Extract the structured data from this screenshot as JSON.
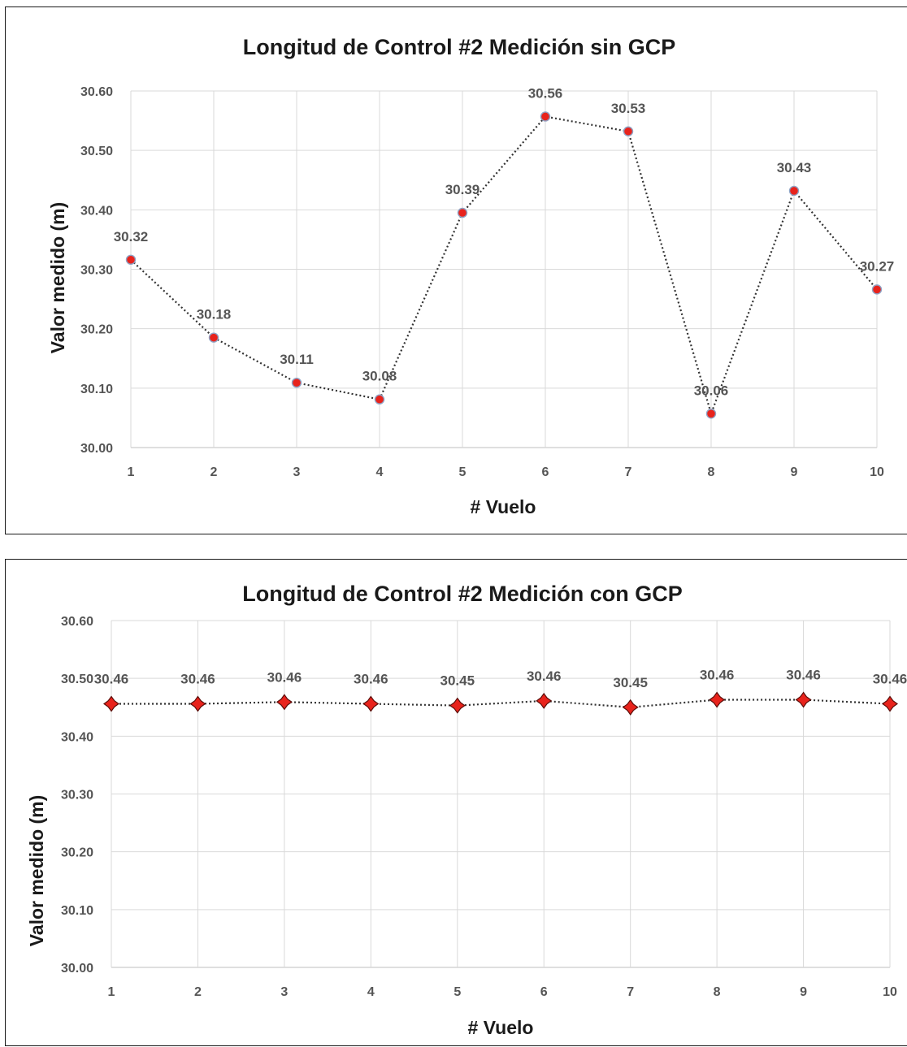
{
  "chart_data": [
    {
      "type": "line",
      "title": "Longitud de Control #2 Medición sin GCP",
      "xlabel": "# Vuelo",
      "ylabel": "Valor medido (m)",
      "categories": [
        "1",
        "2",
        "3",
        "4",
        "5",
        "6",
        "7",
        "8",
        "9",
        "10"
      ],
      "y_ticks": [
        "30.00",
        "30.10",
        "30.20",
        "30.30",
        "30.40",
        "30.50",
        "30.60"
      ],
      "ylim": [
        30.0,
        30.6
      ],
      "values": [
        30.316,
        30.185,
        30.109,
        30.081,
        30.395,
        30.557,
        30.532,
        30.057,
        30.432,
        30.266
      ],
      "data_labels": [
        "30.32",
        "30.18",
        "30.11",
        "30.08",
        "30.39",
        "30.56",
        "30.53",
        "30.06",
        "30.43",
        "30.27"
      ],
      "marker": "circle",
      "marker_color": "#e8231c",
      "line_style": "dotted",
      "grid": true
    },
    {
      "type": "line",
      "title": "Longitud de Control #2 Medición con GCP",
      "xlabel": "# Vuelo",
      "ylabel": "Valor medido (m)",
      "categories": [
        "1",
        "2",
        "3",
        "4",
        "5",
        "6",
        "7",
        "8",
        "9",
        "10"
      ],
      "y_ticks": [
        "30.00",
        "30.10",
        "30.20",
        "30.30",
        "30.40",
        "30.50",
        "30.60"
      ],
      "ylim": [
        30.0,
        30.6
      ],
      "values": [
        30.456,
        30.456,
        30.459,
        30.456,
        30.453,
        30.461,
        30.45,
        30.463,
        30.463,
        30.456
      ],
      "data_labels": [
        "30.46",
        "30.46",
        "30.46",
        "30.46",
        "30.45",
        "30.46",
        "30.45",
        "30.46",
        "30.46",
        "30.46"
      ],
      "marker": "star",
      "marker_color": "#e8231c",
      "line_style": "dotted",
      "grid": true
    }
  ]
}
